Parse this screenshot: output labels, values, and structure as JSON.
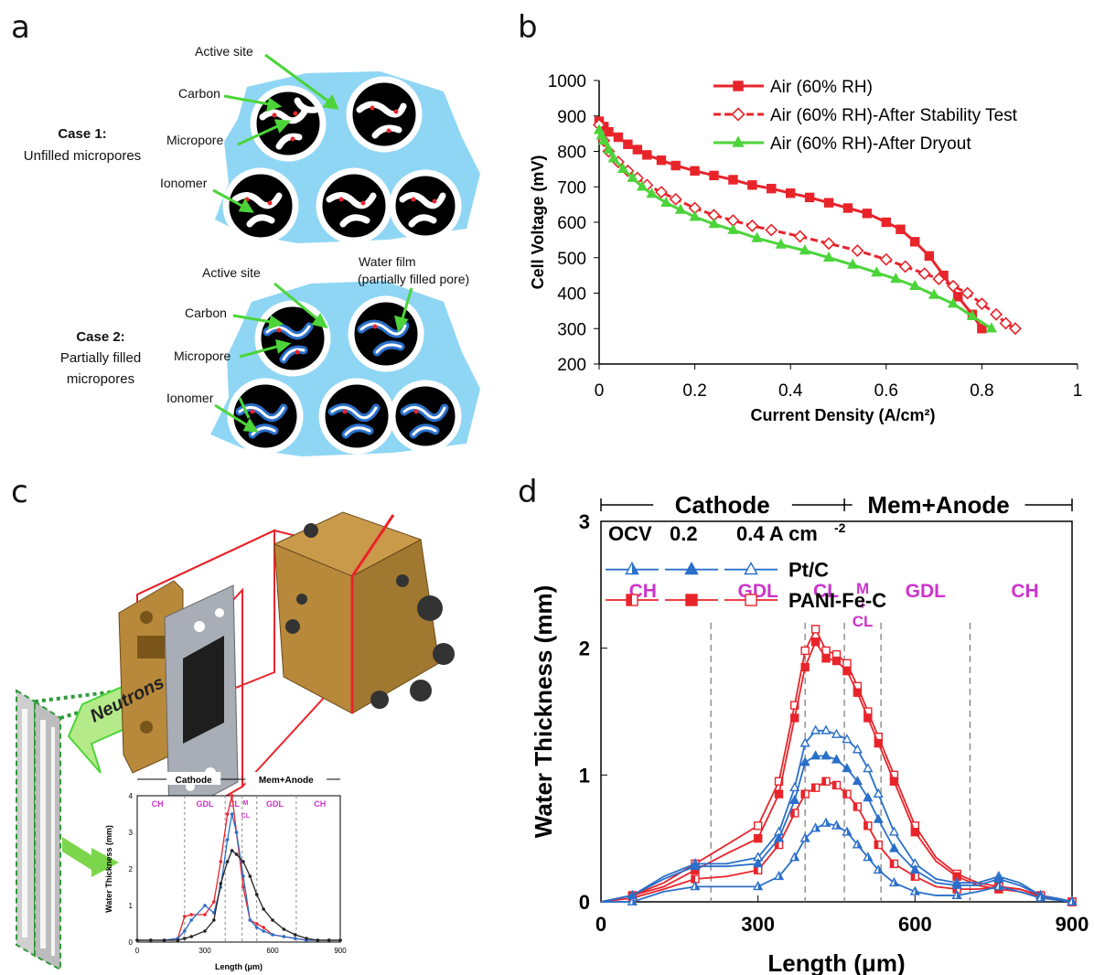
{
  "panels": {
    "a": {
      "letter": "a",
      "case1": {
        "title": "Case 1:",
        "subtitle": "Unfilled micropores",
        "labels": {
          "active_site": "Active site",
          "carbon": "Carbon",
          "micropore": "Micropore",
          "ionomer": "Ionomer"
        }
      },
      "case2": {
        "title": "Case 2:",
        "subtitle_line1": "Partially filled",
        "subtitle_line2": "micropores",
        "labels": {
          "active_site": "Active site",
          "water_film_line1": "Water film",
          "water_film_line2": "(partially filled pore)",
          "carbon": "Carbon",
          "micropore": "Micropore",
          "ionomer": "Ionomer"
        }
      }
    },
    "b": {
      "letter": "b"
    },
    "c": {
      "letter": "c",
      "neutrons_label": "Neutrons",
      "inset": {
        "cathode": "Cathode",
        "mem_anode": "Mem+Anode",
        "regions": [
          "CH",
          "GDL",
          "CL",
          "M",
          "CL",
          "GDL",
          "CH"
        ],
        "ylabel": "Water Thickness (mm)",
        "xlabel": "Length (μm)",
        "xticks": [
          "0",
          "300",
          "600",
          "900"
        ],
        "yticks": [
          "0",
          "1",
          "2",
          "3",
          "4"
        ]
      }
    },
    "d": {
      "letter": "d"
    }
  },
  "colors": {
    "red": "#e8242b",
    "green": "#4cd43a",
    "blue": "#2a6fc9",
    "magenta": "#cc33cc",
    "ionomer": "#8fd6f5"
  },
  "chart_data": [
    {
      "panel": "b",
      "type": "line",
      "title": "",
      "xlabel": "Current Density (A/cm²)",
      "ylabel": "Cell Voltage (mV)",
      "xlim": [
        0,
        1
      ],
      "ylim": [
        200,
        1000
      ],
      "xticks": [
        0,
        0.2,
        0.4,
        0.6,
        0.8,
        1
      ],
      "yticks": [
        200,
        300,
        400,
        500,
        600,
        700,
        800,
        900,
        1000
      ],
      "grid": false,
      "legend": "top-right",
      "series": [
        {
          "name": "Air (60% RH)",
          "color": "#e8242b",
          "marker": "square-filled",
          "dash": false,
          "x": [
            0,
            0.01,
            0.02,
            0.04,
            0.06,
            0.08,
            0.1,
            0.13,
            0.16,
            0.2,
            0.24,
            0.28,
            0.32,
            0.36,
            0.4,
            0.44,
            0.48,
            0.52,
            0.56,
            0.6,
            0.63,
            0.66,
            0.69,
            0.72,
            0.75,
            0.78,
            0.8
          ],
          "y": [
            885,
            870,
            855,
            840,
            820,
            805,
            790,
            775,
            760,
            745,
            732,
            720,
            705,
            695,
            682,
            670,
            655,
            640,
            625,
            600,
            580,
            545,
            505,
            450,
            390,
            340,
            300
          ]
        },
        {
          "name": "Air (60% RH)-After Stability Test",
          "color": "#e8242b",
          "marker": "diamond-open",
          "dash": true,
          "x": [
            0,
            0.01,
            0.02,
            0.04,
            0.06,
            0.08,
            0.1,
            0.13,
            0.16,
            0.2,
            0.24,
            0.28,
            0.32,
            0.36,
            0.42,
            0.48,
            0.54,
            0.6,
            0.64,
            0.68,
            0.71,
            0.74,
            0.77,
            0.8,
            0.83,
            0.85,
            0.87
          ],
          "y": [
            875,
            830,
            800,
            770,
            745,
            725,
            705,
            685,
            665,
            640,
            620,
            605,
            590,
            578,
            560,
            540,
            520,
            495,
            475,
            455,
            440,
            420,
            400,
            370,
            340,
            315,
            300
          ]
        },
        {
          "name": "Air (60% RH)-After Dryout",
          "color": "#4cd43a",
          "marker": "triangle-filled",
          "dash": false,
          "x": [
            0,
            0.005,
            0.01,
            0.02,
            0.03,
            0.05,
            0.07,
            0.09,
            0.11,
            0.14,
            0.17,
            0.2,
            0.24,
            0.28,
            0.33,
            0.38,
            0.43,
            0.48,
            0.53,
            0.58,
            0.62,
            0.66,
            0.7,
            0.74,
            0.78,
            0.82
          ],
          "y": [
            860,
            845,
            830,
            805,
            780,
            750,
            725,
            700,
            680,
            655,
            635,
            615,
            595,
            578,
            555,
            537,
            520,
            500,
            480,
            458,
            440,
            420,
            395,
            370,
            335,
            300
          ]
        }
      ]
    },
    {
      "panel": "d",
      "type": "line",
      "title": "",
      "xlabel": "Length (μm)",
      "ylabel": "Water Thickness (mm)",
      "xlim": [
        0,
        900
      ],
      "ylim": [
        0,
        3
      ],
      "xticks": [
        0,
        300,
        600,
        900
      ],
      "yticks": [
        0,
        1,
        2,
        3
      ],
      "grid": false,
      "header": {
        "cathode": "Cathode",
        "mem_anode": "Mem+Anode"
      },
      "legend": {
        "headers": [
          "OCV",
          "0.2",
          "0.4 A cm"
        ],
        "superscript": "-2",
        "rows": [
          "Pt/C",
          "PANI-Fe-C"
        ]
      },
      "regions": [
        {
          "label": "CH",
          "x": 80
        },
        {
          "label": "GDL",
          "x": 300
        },
        {
          "label": "CL",
          "x": 430
        },
        {
          "label": "M",
          "x": 500
        },
        {
          "label": "+",
          "x": 500
        },
        {
          "label": "CL",
          "x": 500
        },
        {
          "label": "GDL",
          "x": 620
        },
        {
          "label": "CH",
          "x": 810
        }
      ],
      "boundaries": [
        210,
        390,
        465,
        535,
        705
      ],
      "series": [
        {
          "name": "PANI-Fe-C 0.4",
          "color": "#e8242b",
          "marker": "square-open",
          "x": [
            0,
            60,
            120,
            180,
            240,
            300,
            340,
            370,
            390,
            410,
            430,
            450,
            470,
            490,
            510,
            530,
            560,
            600,
            640,
            680,
            720,
            760,
            800,
            840,
            880,
            900
          ],
          "y": [
            0,
            0.05,
            0.15,
            0.3,
            0.45,
            0.6,
            0.95,
            1.55,
            1.98,
            2.15,
            1.98,
            1.95,
            1.88,
            1.7,
            1.5,
            1.3,
            1.0,
            0.6,
            0.35,
            0.22,
            0.15,
            0.12,
            0.1,
            0.05,
            0.02,
            0
          ]
        },
        {
          "name": "PANI-Fe-C 0.2",
          "color": "#e8242b",
          "marker": "square-filled",
          "x": [
            0,
            60,
            120,
            180,
            240,
            300,
            340,
            370,
            390,
            410,
            430,
            450,
            470,
            490,
            510,
            530,
            560,
            600,
            640,
            680,
            720,
            760,
            800,
            840,
            880,
            900
          ],
          "y": [
            0,
            0.05,
            0.12,
            0.25,
            0.38,
            0.5,
            0.85,
            1.45,
            1.85,
            2.05,
            1.92,
            1.9,
            1.82,
            1.65,
            1.45,
            1.25,
            0.95,
            0.55,
            0.32,
            0.2,
            0.13,
            0.1,
            0.08,
            0.04,
            0.02,
            0
          ]
        },
        {
          "name": "PANI-Fe-C OCV",
          "color": "#e8242b",
          "marker": "square-half",
          "x": [
            0,
            60,
            120,
            180,
            240,
            300,
            340,
            370,
            390,
            410,
            430,
            450,
            470,
            490,
            510,
            530,
            560,
            600,
            640,
            680,
            720,
            760,
            800,
            840,
            880,
            900
          ],
          "y": [
            0,
            0.03,
            0.1,
            0.18,
            0.2,
            0.25,
            0.45,
            0.7,
            0.85,
            0.9,
            0.95,
            0.92,
            0.85,
            0.75,
            0.6,
            0.45,
            0.3,
            0.2,
            0.12,
            0.1,
            0.1,
            0.12,
            0.1,
            0.05,
            0.02,
            0
          ]
        },
        {
          "name": "Pt/C 0.4",
          "color": "#2a6fc9",
          "marker": "triangle-open",
          "x": [
            0,
            60,
            120,
            180,
            240,
            300,
            340,
            370,
            390,
            410,
            430,
            450,
            470,
            490,
            510,
            530,
            560,
            600,
            640,
            680,
            720,
            760,
            800,
            840,
            880,
            900
          ],
          "y": [
            0,
            0.05,
            0.2,
            0.3,
            0.3,
            0.35,
            0.55,
            0.9,
            1.25,
            1.35,
            1.35,
            1.32,
            1.28,
            1.2,
            1.05,
            0.85,
            0.55,
            0.3,
            0.18,
            0.15,
            0.15,
            0.2,
            0.15,
            0.05,
            0.02,
            0
          ]
        },
        {
          "name": "Pt/C 0.2",
          "color": "#2a6fc9",
          "marker": "triangle-filled",
          "x": [
            0,
            60,
            120,
            180,
            240,
            300,
            340,
            370,
            390,
            410,
            430,
            450,
            470,
            490,
            510,
            530,
            560,
            600,
            640,
            680,
            720,
            760,
            800,
            840,
            880,
            900
          ],
          "y": [
            0,
            0.05,
            0.18,
            0.28,
            0.28,
            0.3,
            0.5,
            0.8,
            1.1,
            1.15,
            1.15,
            1.12,
            1.05,
            0.95,
            0.82,
            0.65,
            0.42,
            0.25,
            0.15,
            0.13,
            0.13,
            0.18,
            0.13,
            0.05,
            0.02,
            0
          ]
        },
        {
          "name": "Pt/C OCV",
          "color": "#2a6fc9",
          "marker": "triangle-half",
          "x": [
            0,
            60,
            120,
            180,
            240,
            300,
            340,
            370,
            390,
            410,
            430,
            450,
            470,
            490,
            510,
            530,
            560,
            600,
            640,
            680,
            720,
            760,
            800,
            840,
            880,
            900
          ],
          "y": [
            0,
            0.0,
            0.08,
            0.12,
            0.12,
            0.12,
            0.2,
            0.35,
            0.5,
            0.58,
            0.62,
            0.6,
            0.55,
            0.45,
            0.35,
            0.25,
            0.15,
            0.08,
            0.05,
            0.05,
            0.08,
            0.12,
            0.08,
            0.03,
            0.01,
            0
          ]
        }
      ]
    }
  ]
}
